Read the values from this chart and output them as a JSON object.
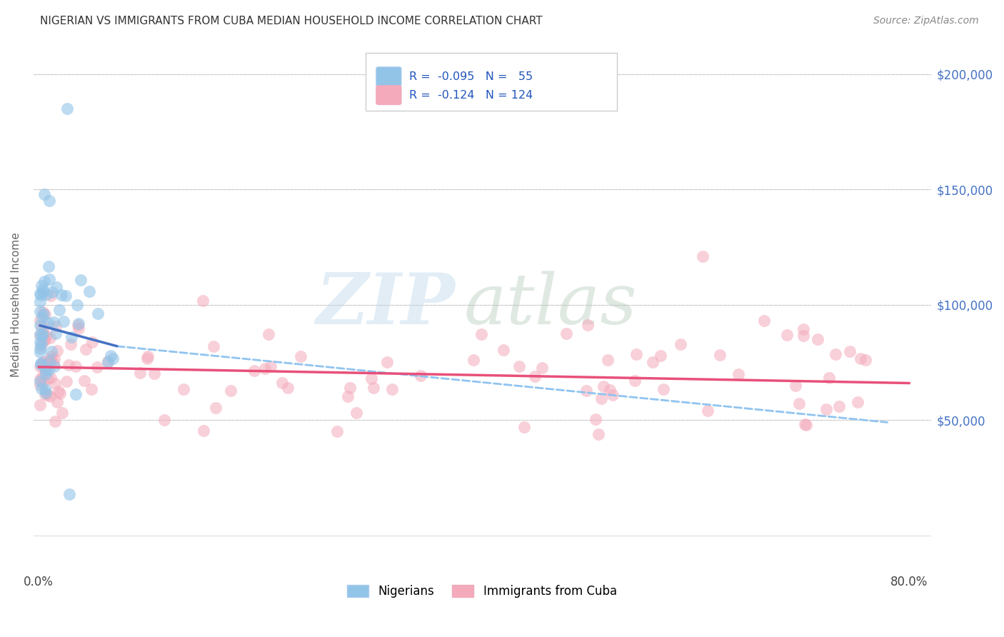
{
  "title": "NIGERIAN VS IMMIGRANTS FROM CUBA MEDIAN HOUSEHOLD INCOME CORRELATION CHART",
  "source": "Source: ZipAtlas.com",
  "ylabel": "Median Household Income",
  "R1": -0.095,
  "N1": 55,
  "R2": -0.124,
  "N2": 124,
  "color_blue": "#92C4E8",
  "color_pink": "#F4AABB",
  "color_blue_line": "#4472C4",
  "color_pink_line": "#E8507A",
  "color_dashed": "#90C4F0",
  "legend_label1": "Nigerians",
  "legend_label2": "Immigrants from Cuba",
  "watermark_zip": "ZIP",
  "watermark_atlas": "atlas",
  "xlim_min": -0.005,
  "xlim_max": 0.82,
  "ylim_min": -15000,
  "ylim_max": 215000,
  "yticks": [
    0,
    50000,
    100000,
    150000,
    200000
  ],
  "ytick_labels": [
    "",
    "$50,000",
    "$100,000",
    "$150,000",
    "$200,000"
  ],
  "xticks": [
    0.0,
    0.1,
    0.2,
    0.3,
    0.4,
    0.5,
    0.6,
    0.7,
    0.8
  ],
  "xtick_labels": [
    "0.0%",
    "",
    "",
    "",
    "",
    "",
    "",
    "",
    "80.0%"
  ],
  "nig_blue_line_x0": 0.001,
  "nig_blue_line_x1": 0.072,
  "nig_blue_line_y0": 91000,
  "nig_blue_line_y1": 82000,
  "nig_dash_line_x0": 0.072,
  "nig_dash_line_x1": 0.78,
  "nig_dash_line_y0": 82000,
  "nig_dash_line_y1": 49000,
  "cuba_line_x0": 0.0,
  "cuba_line_x1": 0.8,
  "cuba_line_y0": 73000,
  "cuba_line_y1": 66000
}
